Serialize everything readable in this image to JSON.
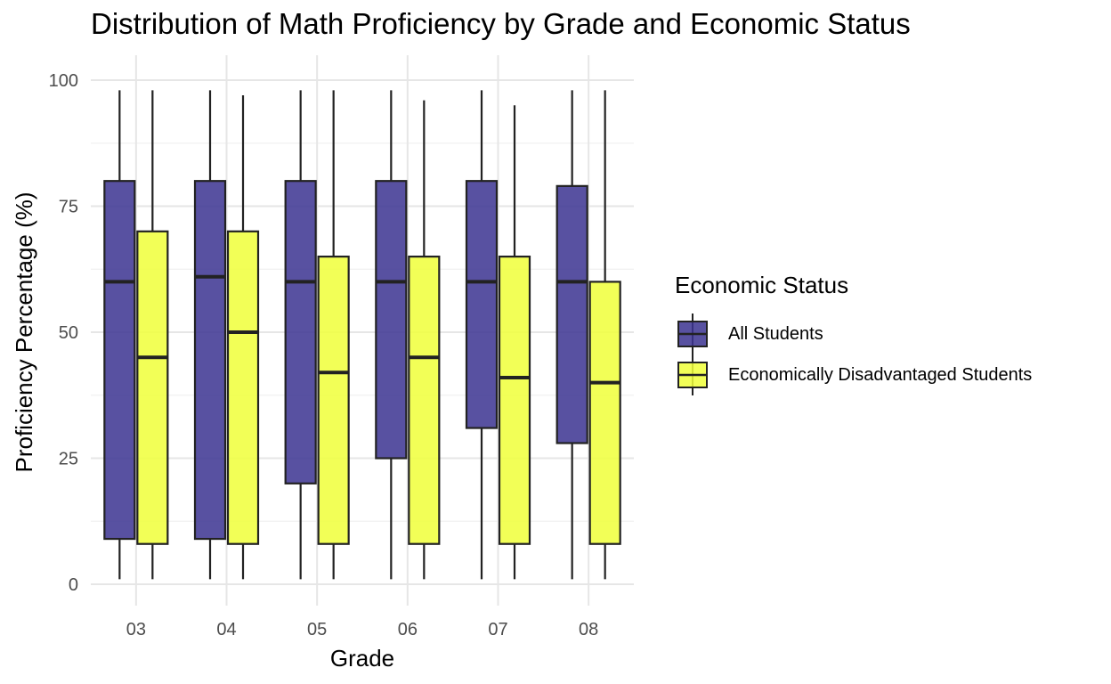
{
  "chart_data": {
    "type": "boxplot",
    "title": "Distribution of Math Proficiency by Grade and Economic Status",
    "xlabel": "Grade",
    "ylabel": "Proficiency Percentage (%)",
    "categories": [
      "03",
      "04",
      "05",
      "06",
      "07",
      "08"
    ],
    "ylim": [
      0,
      100
    ],
    "yticks": [
      0,
      25,
      50,
      75,
      100
    ],
    "grid": true,
    "legend": {
      "title": "Economic Status",
      "position": "right"
    },
    "series": [
      {
        "name": "All Students",
        "color": "#3b3390",
        "boxes": [
          {
            "min": 1,
            "q1": 9,
            "median": 60,
            "q3": 80,
            "max": 98
          },
          {
            "min": 1,
            "q1": 9,
            "median": 61,
            "q3": 80,
            "max": 98
          },
          {
            "min": 1,
            "q1": 20,
            "median": 60,
            "q3": 80,
            "max": 98
          },
          {
            "min": 1,
            "q1": 25,
            "median": 60,
            "q3": 80,
            "max": 98
          },
          {
            "min": 1,
            "q1": 31,
            "median": 60,
            "q3": 80,
            "max": 98
          },
          {
            "min": 1,
            "q1": 28,
            "median": 60,
            "q3": 79,
            "max": 98
          }
        ]
      },
      {
        "name": "Economically Disadvantaged Students",
        "color": "#f0ff3a",
        "boxes": [
          {
            "min": 1,
            "q1": 8,
            "median": 45,
            "q3": 70,
            "max": 98
          },
          {
            "min": 1,
            "q1": 8,
            "median": 50,
            "q3": 70,
            "max": 97
          },
          {
            "min": 1,
            "q1": 8,
            "median": 42,
            "q3": 65,
            "max": 98
          },
          {
            "min": 1,
            "q1": 8,
            "median": 45,
            "q3": 65,
            "max": 96
          },
          {
            "min": 1,
            "q1": 8,
            "median": 41,
            "q3": 65,
            "max": 95
          },
          {
            "min": 1,
            "q1": 8,
            "median": 40,
            "q3": 60,
            "max": 98
          }
        ]
      }
    ]
  }
}
